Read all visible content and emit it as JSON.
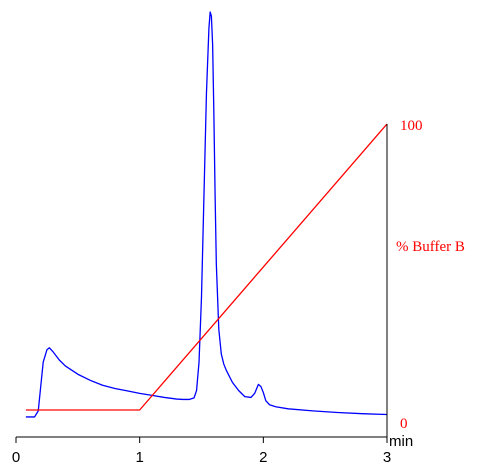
{
  "colors": {
    "chromatogram": "#0000ff",
    "gradient": "#ff0000",
    "axis": "#000000"
  },
  "chart_data": {
    "type": "line",
    "title": "",
    "xlabel": "min",
    "ylabel": "",
    "xlim": [
      0,
      3
    ],
    "x_ticks": [
      "0",
      "1",
      "2",
      "3"
    ],
    "right_axis": {
      "label": "% Buffer B",
      "tick_labels": [
        "0",
        "100"
      ],
      "ylim": [
        0,
        100
      ]
    },
    "series": [
      {
        "color": "#0000ff",
        "axis": "left",
        "x": [
          0.08,
          0.15,
          0.18,
          0.2,
          0.22,
          0.25,
          0.27,
          0.3,
          0.35,
          0.4,
          0.5,
          0.6,
          0.7,
          0.8,
          0.9,
          1.0,
          1.1,
          1.2,
          1.3,
          1.35,
          1.4,
          1.44,
          1.46,
          1.48,
          1.5,
          1.52,
          1.54,
          1.56,
          1.57,
          1.58,
          1.59,
          1.6,
          1.61,
          1.62,
          1.64,
          1.66,
          1.68,
          1.7,
          1.75,
          1.8,
          1.85,
          1.9,
          1.93,
          1.96,
          1.98,
          2.0,
          2.02,
          2.05,
          2.1,
          2.2,
          2.4,
          2.6,
          2.8,
          3.0
        ],
        "y": [
          0.5,
          0.5,
          2.0,
          8.0,
          14.0,
          17.0,
          17.5,
          16.5,
          14.5,
          13.0,
          11.0,
          9.5,
          8.3,
          7.5,
          6.9,
          6.3,
          5.8,
          5.3,
          4.9,
          4.8,
          4.8,
          5.2,
          7.0,
          14.0,
          30.0,
          55.0,
          80.0,
          96.0,
          100.0,
          99.0,
          92.0,
          75.0,
          55.0,
          38.0,
          22.0,
          16.0,
          13.5,
          12.0,
          9.0,
          7.0,
          5.5,
          5.3,
          6.3,
          8.5,
          8.0,
          6.5,
          4.5,
          3.5,
          3.0,
          2.5,
          2.0,
          1.6,
          1.3,
          1.1
        ]
      },
      {
        "color": "#ff0000",
        "axis": "right",
        "x": [
          0.08,
          1.0,
          3.0
        ],
        "y": [
          0,
          0,
          100
        ]
      }
    ]
  }
}
